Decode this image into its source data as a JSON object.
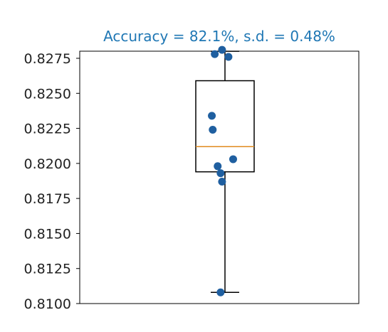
{
  "chart_data": {
    "type": "box",
    "title": "Accuracy = 82.1%, s.d. = 0.48%",
    "xlabel": "",
    "ylabel": "",
    "ylim": [
      0.81,
      0.8275
    ],
    "yticks": [
      "0.8100",
      "0.8125",
      "0.8150",
      "0.8175",
      "0.8200",
      "0.8225",
      "0.8250",
      "0.8275"
    ],
    "box": {
      "whisker_low": 0.8108,
      "q1": 0.8194,
      "median": 0.8212,
      "q3": 0.8259,
      "whisker_high": 0.828
    },
    "points": [
      {
        "x_jitter": -0.35,
        "y": 0.8278
      },
      {
        "x_jitter": -0.1,
        "y": 0.8281
      },
      {
        "x_jitter": 0.12,
        "y": 0.8276
      },
      {
        "x_jitter": -0.45,
        "y": 0.8234
      },
      {
        "x_jitter": -0.42,
        "y": 0.8224
      },
      {
        "x_jitter": 0.28,
        "y": 0.8203
      },
      {
        "x_jitter": -0.25,
        "y": 0.8198
      },
      {
        "x_jitter": -0.15,
        "y": 0.8193
      },
      {
        "x_jitter": -0.1,
        "y": 0.8187
      },
      {
        "x_jitter": -0.15,
        "y": 0.8108
      }
    ],
    "grid": false,
    "colors": {
      "title": "#1f77b4",
      "points": "#1f5fa0",
      "median": "#e08a1e",
      "box": "#000000"
    }
  }
}
